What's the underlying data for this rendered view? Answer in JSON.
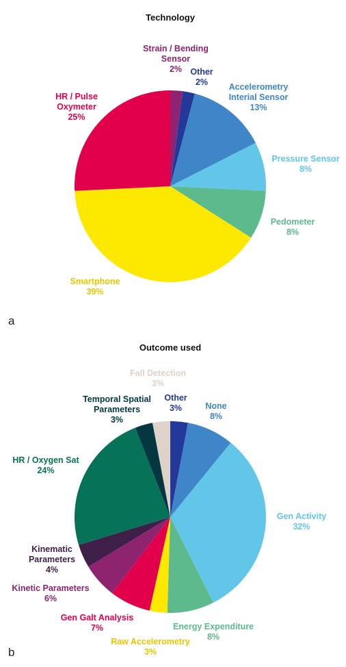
{
  "chart_data": [
    {
      "type": "pie",
      "panel_label": "a",
      "title": "Technology",
      "slices": [
        {
          "label": "Strain / Bending Sensor",
          "value": 2,
          "value_label": "2%",
          "color": "#8e2470"
        },
        {
          "label": "Other",
          "value": 2,
          "value_label": "2%",
          "color": "#24389a"
        },
        {
          "label": "Accelerometry Interial Sensor",
          "value": 13,
          "value_label": "13%",
          "color": "#3f86c8"
        },
        {
          "label": "Pressure Sensor",
          "value": 8,
          "value_label": "8%",
          "color": "#62c6e8"
        },
        {
          "label": "Pedometer",
          "value": 8,
          "value_label": "8%",
          "color": "#5dba8c"
        },
        {
          "label": "Smartphone",
          "value": 39,
          "value_label": "39%",
          "color": "#fde800"
        },
        {
          "label": "HR / Pulse Oxymeter",
          "value": 25,
          "value_label": "25%",
          "color": "#e2004d"
        }
      ]
    },
    {
      "type": "pie",
      "panel_label": "b",
      "title": "Outcome used",
      "slices": [
        {
          "label": "Other",
          "value": 3,
          "value_label": "3%",
          "color": "#24389a"
        },
        {
          "label": "None",
          "value": 8,
          "value_label": "8%",
          "color": "#3f86c8"
        },
        {
          "label": "Gen Activity",
          "value": 32,
          "value_label": "32%",
          "color": "#62c6e8"
        },
        {
          "label": "Energy Expenditure",
          "value": 8,
          "value_label": "8%",
          "color": "#5dba8c"
        },
        {
          "label": "Raw Accelerometry",
          "value": 3,
          "value_label": "3%",
          "color": "#fde800"
        },
        {
          "label": "Gen Galt Analysis",
          "value": 7,
          "value_label": "7%",
          "color": "#e2004d"
        },
        {
          "label": "Kinetic Parameters",
          "value": 6,
          "value_label": "6%",
          "color": "#8e2470"
        },
        {
          "label": "Kinematic Parameters",
          "value": 4,
          "value_label": "4%",
          "color": "#3e1f48"
        },
        {
          "label": "HR / Oxygen Sat",
          "value": 24,
          "value_label": "24%",
          "color": "#067257"
        },
        {
          "label": "Temporal Spatial Parameters",
          "value": 3,
          "value_label": "3%",
          "color": "#053740"
        },
        {
          "label": "Fall Detection",
          "value": 3,
          "value_label": "3%",
          "color": "#ddd3c9"
        }
      ]
    }
  ]
}
